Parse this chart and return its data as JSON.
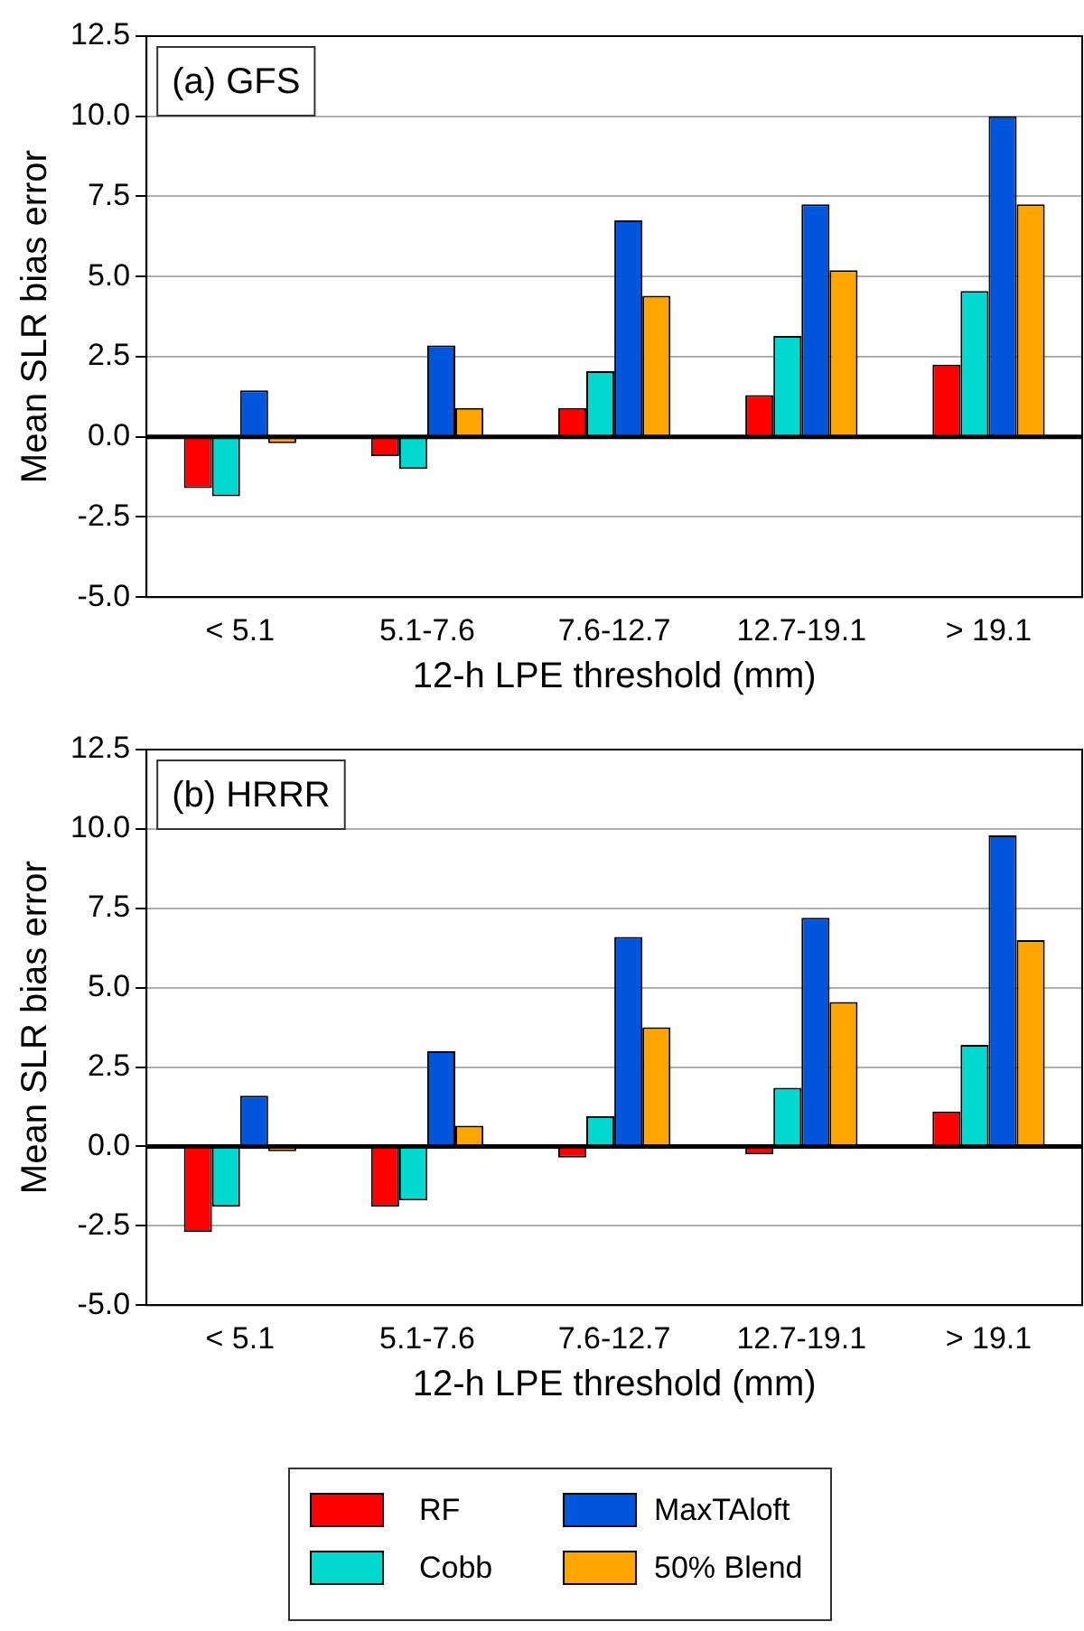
{
  "chart_data": [
    {
      "type": "bar",
      "title": "(a) GFS",
      "xlabel": "12-h LPE threshold (mm)",
      "ylabel": "Mean SLR bias error",
      "categories": [
        "< 5.1",
        "5.1-7.6",
        "7.6-12.7",
        "12.7-19.1",
        "> 19.1"
      ],
      "series": [
        {
          "color": "#ff0000",
          "values": [
            -1.6,
            -0.6,
            0.9,
            1.3,
            2.25
          ]
        },
        {
          "color": "#00d8d0",
          "values": [
            -1.85,
            -1.0,
            2.05,
            3.15,
            4.55
          ]
        },
        {
          "color": "#0055dd",
          "values": [
            1.45,
            2.85,
            6.75,
            7.25,
            10.0
          ]
        },
        {
          "color": "#ffa500",
          "values": [
            -0.2,
            0.9,
            4.4,
            5.2,
            7.25
          ]
        }
      ],
      "ylim": [
        -5,
        12.5
      ],
      "yticks": [
        {
          "value": -5,
          "label": "-5.0"
        },
        -2.5,
        {
          "value": 0,
          "label": "0.0"
        },
        2.5,
        {
          "value": 5,
          "label": "5.0"
        },
        7.5,
        {
          "value": 10,
          "label": "10.0"
        },
        12.5
      ],
      "grid": "y",
      "ref_lines": [
        {
          "axis": "y",
          "value": 0,
          "color": "#000000"
        }
      ]
    },
    {
      "type": "bar",
      "title": "(b) HRRR",
      "xlabel": "12-h LPE threshold (mm)",
      "ylabel": "Mean SLR bias error",
      "categories": [
        "< 5.1",
        "5.1-7.6",
        "7.6-12.7",
        "12.7-19.1",
        "> 19.1"
      ],
      "series": [
        {
          "name": "RF",
          "color": "#ff0000",
          "values": [
            -2.7,
            -1.9,
            -0.35,
            -0.25,
            1.1
          ]
        },
        {
          "name": "Cobb",
          "color": "#00d8d0",
          "values": [
            -1.9,
            -1.7,
            0.95,
            1.85,
            3.2
          ]
        },
        {
          "name": "MaxTAloft",
          "color": "#0055dd",
          "values": [
            1.6,
            3.0,
            6.6,
            7.2,
            9.8
          ]
        },
        {
          "name": "50% Blend",
          "color": "#ffa500",
          "values": [
            -0.15,
            0.65,
            3.75,
            4.55,
            6.5
          ]
        }
      ],
      "ylim": [
        -5,
        12.5
      ],
      "yticks": [
        {
          "value": -5,
          "label": "-5.0"
        },
        -2.5,
        {
          "value": 0,
          "label": "0.0"
        },
        2.5,
        {
          "value": 5,
          "label": "5.0"
        },
        7.5,
        {
          "value": 10,
          "label": "10.0"
        },
        12.5
      ],
      "grid": "y",
      "legend": "bottom",
      "ref_lines": [
        {
          "axis": "y",
          "value": 0,
          "color": "#000000"
        }
      ]
    }
  ]
}
